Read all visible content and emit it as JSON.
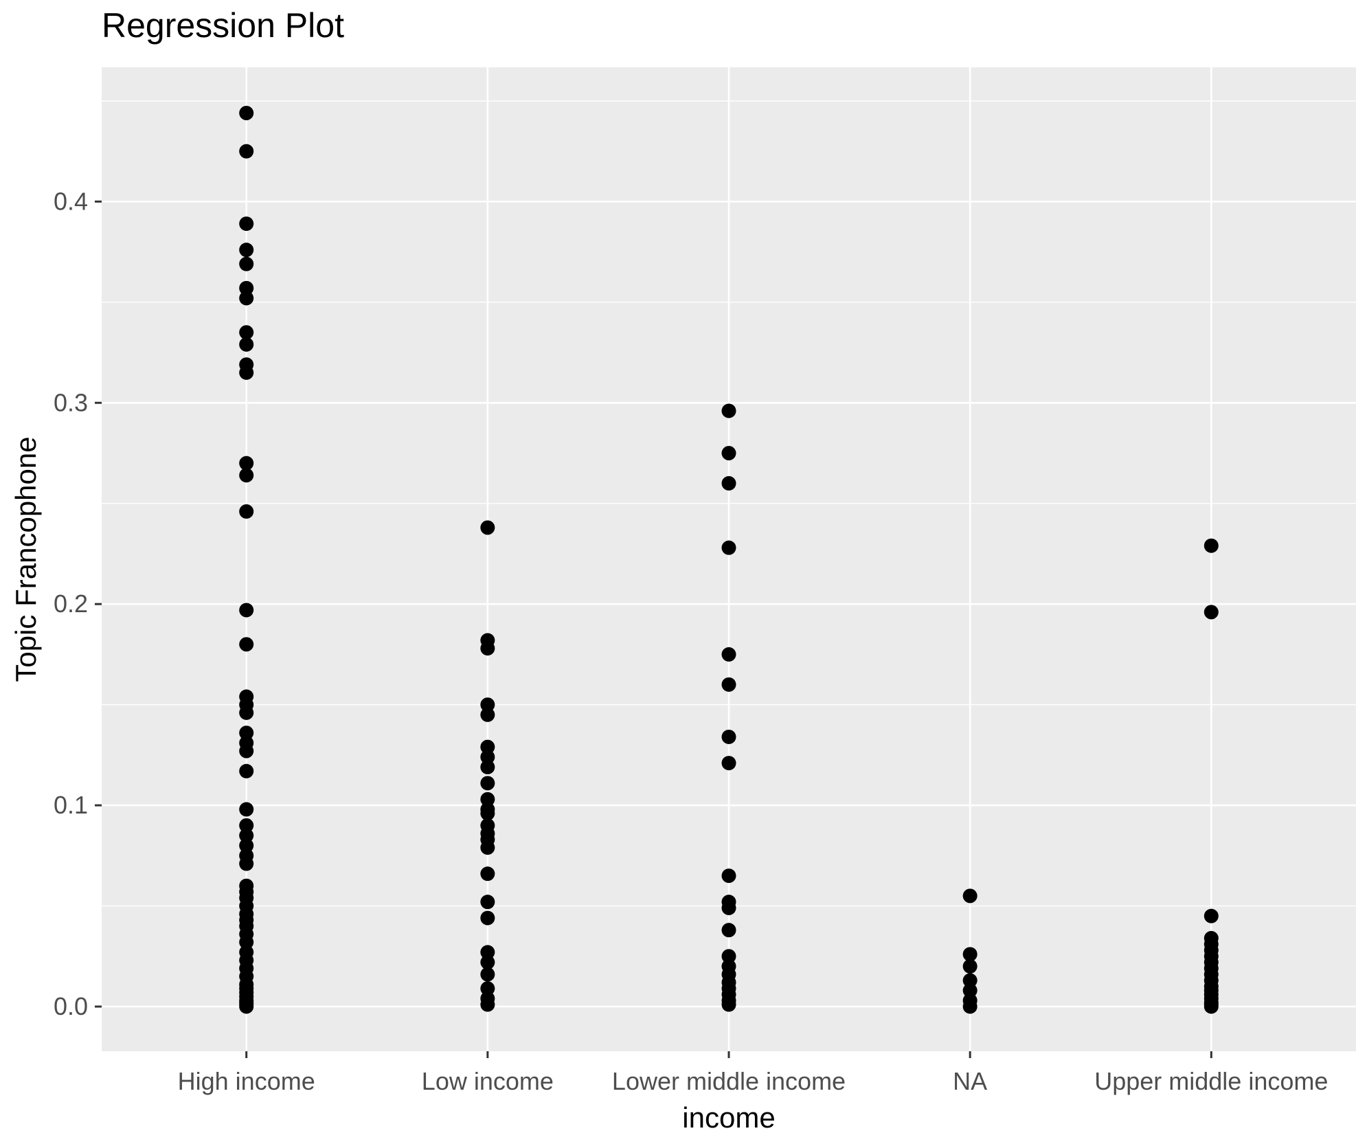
{
  "title": "Regression Plot",
  "chart_data": {
    "type": "scatter",
    "title": "Regression Plot",
    "xlabel": "income",
    "ylabel": "Topic Francophone",
    "legend_position": "none",
    "grid": "on",
    "background": "ggplot-grey",
    "categories": [
      "High income",
      "Low income",
      "Lower middle income",
      "NA",
      "Upper middle income"
    ],
    "y_ticks": [
      {
        "value": 0.0,
        "label": "0.0"
      },
      {
        "value": 0.1,
        "label": "0.1"
      },
      {
        "value": 0.2,
        "label": "0.2"
      },
      {
        "value": 0.3,
        "label": "0.3"
      },
      {
        "value": 0.4,
        "label": "0.4"
      }
    ],
    "y_minor_ticks": [
      0.05,
      0.15,
      0.25,
      0.35,
      0.45
    ],
    "ylim": [
      -0.0222,
      0.4667
    ],
    "series": [
      {
        "name": "High income",
        "values": [
          0.444,
          0.425,
          0.389,
          0.376,
          0.369,
          0.357,
          0.352,
          0.335,
          0.329,
          0.319,
          0.315,
          0.27,
          0.264,
          0.246,
          0.197,
          0.18,
          0.154,
          0.15,
          0.146,
          0.136,
          0.131,
          0.127,
          0.117,
          0.098,
          0.09,
          0.085,
          0.08,
          0.075,
          0.071,
          0.06,
          0.057,
          0.054,
          0.05,
          0.046,
          0.043,
          0.04,
          0.036,
          0.032,
          0.027,
          0.023,
          0.019,
          0.015,
          0.011,
          0.009,
          0.007,
          0.005,
          0.003,
          0.002,
          0.001,
          0.0
        ]
      },
      {
        "name": "Low income",
        "values": [
          0.238,
          0.182,
          0.178,
          0.15,
          0.145,
          0.129,
          0.124,
          0.119,
          0.111,
          0.103,
          0.098,
          0.096,
          0.09,
          0.086,
          0.083,
          0.079,
          0.066,
          0.052,
          0.044,
          0.027,
          0.022,
          0.016,
          0.009,
          0.004,
          0.001
        ]
      },
      {
        "name": "Lower middle income",
        "values": [
          0.296,
          0.275,
          0.26,
          0.228,
          0.175,
          0.16,
          0.134,
          0.121,
          0.065,
          0.052,
          0.049,
          0.038,
          0.025,
          0.02,
          0.016,
          0.012,
          0.009,
          0.006,
          0.003,
          0.001
        ]
      },
      {
        "name": "NA",
        "values": [
          0.055,
          0.026,
          0.02,
          0.013,
          0.008,
          0.003,
          0.0
        ]
      },
      {
        "name": "Upper middle income",
        "values": [
          0.229,
          0.196,
          0.045,
          0.034,
          0.031,
          0.028,
          0.025,
          0.022,
          0.019,
          0.016,
          0.013,
          0.01,
          0.008,
          0.006,
          0.004,
          0.002,
          0.001,
          0.0
        ]
      }
    ],
    "colors": {
      "panel_background": "#EBEBEB",
      "grid_lines": "#FFFFFF",
      "points": "#000000",
      "axis_tick_text": "#4D4D4D",
      "tick_marks": "#333333",
      "title_text": "#000000"
    }
  }
}
